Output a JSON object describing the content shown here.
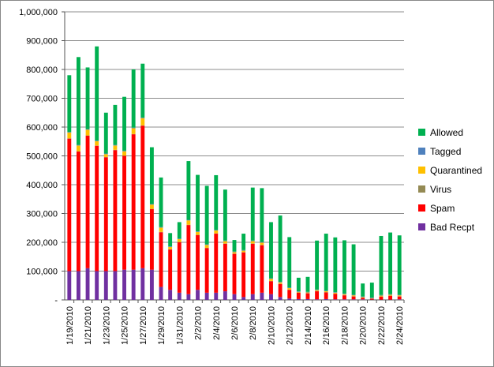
{
  "chart_data": {
    "type": "bar",
    "stacked": true,
    "title": "",
    "xlabel": "",
    "ylabel": "",
    "ylim": [
      0,
      1000000
    ],
    "y_ticks": [
      "-",
      "100,000",
      "200,000",
      "300,000",
      "400,000",
      "500,000",
      "600,000",
      "700,000",
      "800,000",
      "900,000",
      "1,000,000"
    ],
    "grid": true,
    "legend_position": "right",
    "categories": [
      "1/19/2010",
      "1/20/2010",
      "1/21/2010",
      "1/22/2010",
      "1/23/2010",
      "1/24/2010",
      "1/25/2010",
      "1/26/2010",
      "1/27/2010",
      "1/28/2010",
      "1/29/2010",
      "1/30/2010",
      "1/31/2010",
      "2/1/2010",
      "2/2/2010",
      "2/3/2010",
      "2/4/2010",
      "2/5/2010",
      "2/6/2010",
      "2/7/2010",
      "2/8/2010",
      "2/9/2010",
      "2/10/2010",
      "2/11/2010",
      "2/12/2010",
      "2/13/2010",
      "2/14/2010",
      "2/15/2010",
      "2/16/2010",
      "2/17/2010",
      "2/18/2010",
      "2/19/2010",
      "2/20/2010",
      "2/21/2010",
      "2/22/2010",
      "2/23/2010",
      "2/24/2010"
    ],
    "x_tick_labels": [
      "1/19/2010",
      "",
      "1/21/2010",
      "",
      "1/23/2010",
      "",
      "1/25/2010",
      "",
      "1/27/2010",
      "",
      "1/29/2010",
      "",
      "1/31/2010",
      "",
      "2/2/2010",
      "",
      "2/4/2010",
      "",
      "2/6/2010",
      "",
      "2/8/2010",
      "",
      "2/10/2010",
      "",
      "2/12/2010",
      "",
      "2/14/2010",
      "",
      "2/16/2010",
      "",
      "2/18/2010",
      "",
      "2/20/2010",
      "",
      "2/22/2010",
      "",
      "2/24/2010"
    ],
    "series": [
      {
        "name": "Bad Recpt",
        "color": "#7030A0",
        "values": [
          100000,
          100000,
          110000,
          100000,
          100000,
          100000,
          105000,
          105000,
          110000,
          105000,
          45000,
          35000,
          25000,
          20000,
          35000,
          25000,
          25000,
          30000,
          20000,
          10000,
          20000,
          25000,
          20000,
          10000,
          5000,
          3000,
          3000,
          2000,
          3000,
          2000,
          2000,
          2000,
          2000,
          1000,
          1000,
          1000,
          2000
        ]
      },
      {
        "name": "Spam",
        "color": "#FF0000",
        "values": [
          460000,
          415000,
          460000,
          435000,
          395000,
          420000,
          395000,
          470000,
          495000,
          210000,
          190000,
          140000,
          175000,
          240000,
          190000,
          155000,
          205000,
          165000,
          140000,
          155000,
          175000,
          165000,
          45000,
          45000,
          30000,
          22000,
          20000,
          28000,
          23000,
          19000,
          14000,
          10000,
          5000,
          3000,
          10000,
          13000,
          10000
        ]
      },
      {
        "name": "Virus",
        "color": "#948A54",
        "values": [
          1000,
          1000,
          1000,
          1000,
          1000,
          1000,
          1000,
          1000,
          1000,
          1000,
          1000,
          1000,
          1000,
          1000,
          1000,
          1000,
          1000,
          1000,
          1000,
          1000,
          1000,
          1000,
          1000,
          1000,
          1000,
          1000,
          1000,
          1000,
          1000,
          1000,
          1000,
          1000,
          1000,
          1000,
          1000,
          1000,
          1000
        ]
      },
      {
        "name": "Quarantined",
        "color": "#FFC000",
        "values": [
          20000,
          20000,
          20000,
          15000,
          10000,
          15000,
          15000,
          20000,
          25000,
          15000,
          15000,
          8000,
          10000,
          15000,
          10000,
          10000,
          10000,
          8000,
          5000,
          5000,
          8000,
          8000,
          7000,
          5000,
          5000,
          2000,
          2000,
          3000,
          3000,
          3000,
          3000,
          3000,
          2000,
          1000,
          3000,
          3000,
          3000
        ]
      },
      {
        "name": "Tagged",
        "color": "#4F81BD",
        "values": [
          2000,
          2000,
          2000,
          2000,
          2000,
          2000,
          2000,
          2000,
          2000,
          2000,
          2000,
          2000,
          2000,
          2000,
          2000,
          2000,
          2000,
          2000,
          2000,
          2000,
          2000,
          2000,
          2000,
          2000,
          2000,
          2000,
          2000,
          2000,
          2000,
          2000,
          2000,
          2000,
          2000,
          2000,
          2000,
          2000,
          2000
        ]
      },
      {
        "name": "Allowed",
        "color": "#00B050",
        "values": [
          197000,
          305000,
          214000,
          327000,
          142000,
          139000,
          187000,
          202000,
          187000,
          197000,
          172000,
          46000,
          57000,
          204000,
          196000,
          203000,
          190000,
          177000,
          40000,
          57000,
          184000,
          187000,
          195000,
          230000,
          175000,
          47000,
          52000,
          170000,
          198000,
          190000,
          185000,
          175000,
          45000,
          52000,
          205000,
          214000,
          206000
        ]
      }
    ],
    "legend_order": [
      "Allowed",
      "Tagged",
      "Quarantined",
      "Virus",
      "Spam",
      "Bad Recpt"
    ]
  }
}
